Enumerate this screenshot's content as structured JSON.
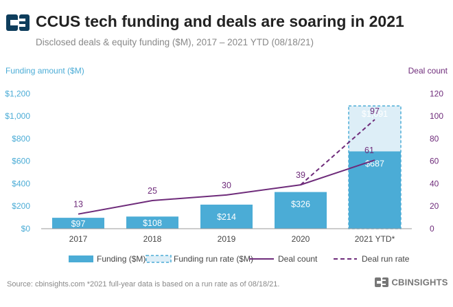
{
  "header": {
    "title": "CCUS tech funding and deals are soaring in 2021",
    "subtitle": "Disclosed deals & equity funding ($M), 2017 – 2021 YTD (08/18/21)"
  },
  "footer": {
    "source": "Source: cbinsights.com  *2021 full-year data is based on a run rate as of 08/18/21.",
    "brand": "CBINSIGHTS"
  },
  "colors": {
    "funding": "#4BACD6",
    "funding_run_rate": "#DDEEF7",
    "deal_line": "#6E2B7A",
    "left_axis": "#4BACD6",
    "right_axis": "#6E2B7A",
    "logo": "#0E3D5C"
  },
  "chart_data": {
    "type": "bar+line",
    "categories": [
      "2017",
      "2018",
      "2019",
      "2020",
      "2021 YTD*"
    ],
    "series": [
      {
        "name": "Funding ($M)",
        "type": "bar",
        "axis": "left",
        "values": [
          97,
          108,
          214,
          326,
          687
        ],
        "labels": [
          "$97",
          "$108",
          "$214",
          "$326",
          "$687"
        ]
      },
      {
        "name": "Funding run rate ($M)",
        "type": "bar-dashed",
        "axis": "left",
        "values": [
          null,
          null,
          null,
          null,
          1091
        ],
        "labels": [
          "",
          "",
          "",
          "",
          "$1,091"
        ]
      },
      {
        "name": "Deal count",
        "type": "line",
        "axis": "right",
        "values": [
          13,
          25,
          30,
          39,
          61
        ],
        "labels": [
          "13",
          "25",
          "30",
          "39",
          "61"
        ]
      },
      {
        "name": "Deal run rate",
        "type": "line-dashed",
        "axis": "right",
        "from_index": 3,
        "values": [
          null,
          null,
          null,
          39,
          97
        ],
        "labels": [
          "",
          "",
          "",
          "",
          "97"
        ]
      }
    ],
    "left_axis": {
      "label": "Funding amount ($M)",
      "range": [
        0,
        1300
      ],
      "ticks": [
        0,
        200,
        400,
        600,
        800,
        1000,
        1200
      ],
      "tick_labels": [
        "$0",
        "$200",
        "$400",
        "$600",
        "$800",
        "$1,000",
        "$1,200"
      ]
    },
    "right_axis": {
      "label": "Deal count",
      "range": [
        0,
        130
      ],
      "ticks": [
        0,
        20,
        40,
        60,
        80,
        100,
        120
      ],
      "tick_labels": [
        "0",
        "20",
        "40",
        "60",
        "80",
        "100",
        "120"
      ]
    },
    "legend": [
      "Funding ($M)",
      "Funding run rate ($M)",
      "Deal count",
      "Deal run rate"
    ],
    "legend_position": "bottom",
    "grid": false
  }
}
